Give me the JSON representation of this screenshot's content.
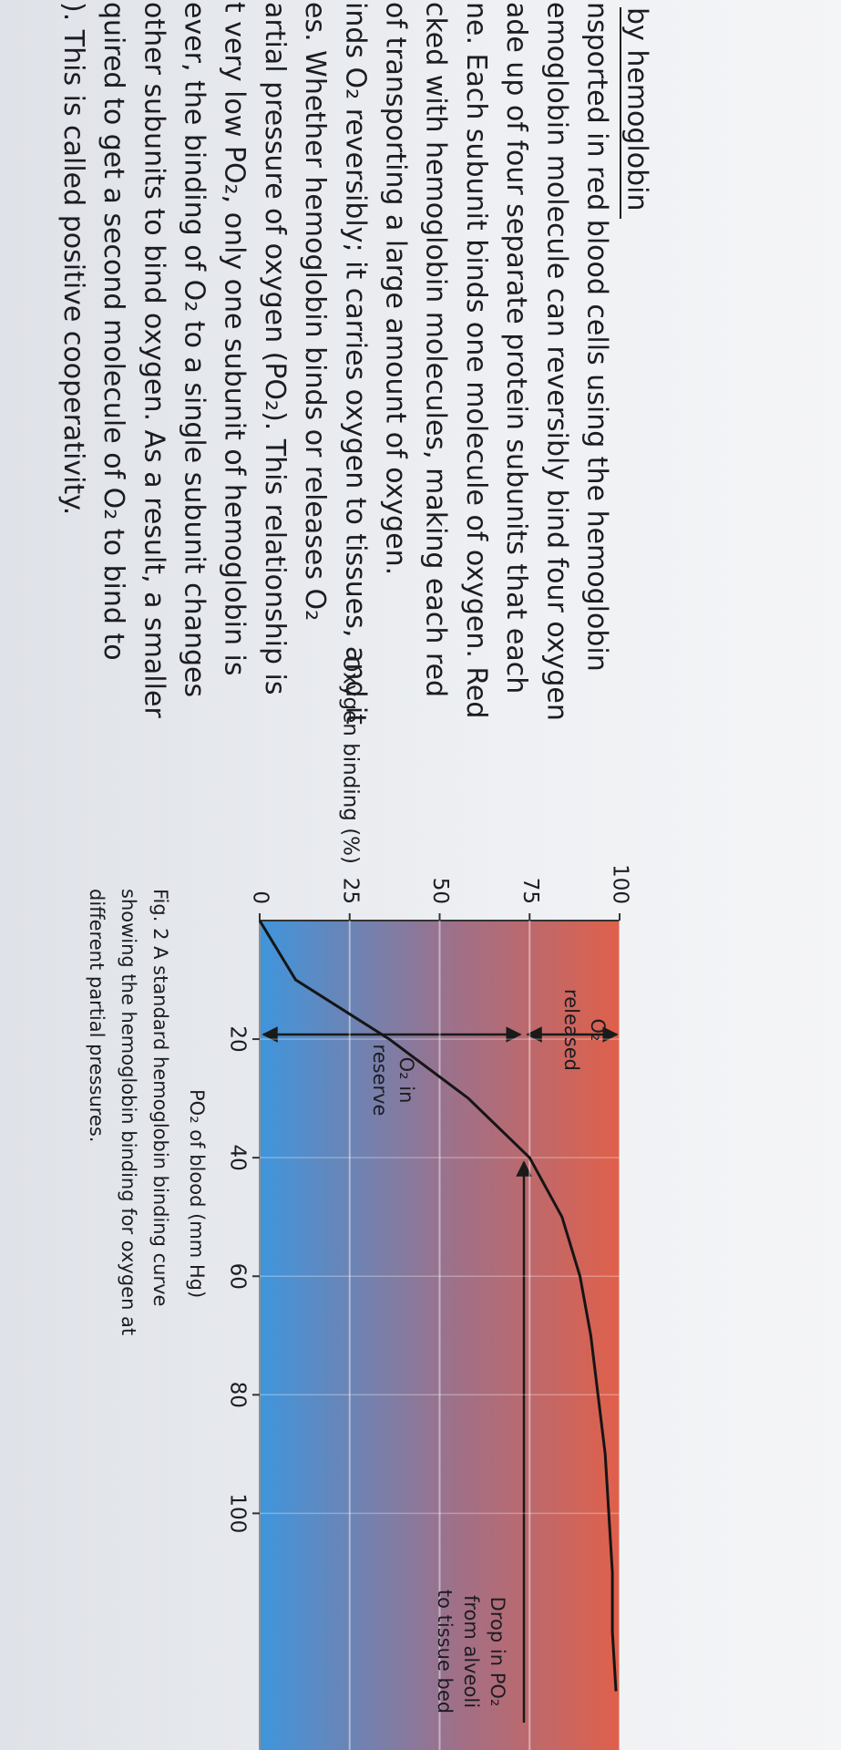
{
  "document": {
    "heading": "by hemoglobin",
    "lines": [
      "nsported in red blood cells using the hemoglobin",
      "emoglobin molecule can reversibly bind four oxygen",
      "ade up of four separate protein subunits that each",
      "ne. Each subunit binds one molecule of oxygen. Red",
      "cked with hemoglobin molecules, making each red",
      "of transporting a large amount of oxygen.",
      "inds O₂ reversibly; it carries oxygen to tissues, and it",
      "es. Whether hemoglobin binds or releases O₂",
      "artial pressure of oxygen (PO₂). This relationship is",
      "t very low PO₂, only one subunit of hemoglobin is",
      "ever, the binding of O₂ to a single subunit changes",
      "other subunits to bind oxygen. As a result, a smaller",
      "quired to get a second molecule of O₂ to bind to",
      "). This is called positive cooperativity."
    ]
  },
  "chart_data": {
    "type": "line",
    "y_label": "Oxygen binding (%)",
    "x_label": "PO₂ of blood (mm Hg)",
    "x": [
      0,
      10,
      20,
      30,
      40,
      50,
      60,
      70,
      80,
      90,
      100,
      110,
      120,
      130
    ],
    "series": [
      {
        "color": "#151515",
        "values": [
          0,
          10,
          36,
          58,
          75,
          84,
          89,
          92,
          94,
          96,
          97,
          98,
          98,
          99
        ]
      }
    ],
    "xlim": [
      0,
      135
    ],
    "ylim": [
      0,
      100
    ],
    "xticks": [
      20,
      40,
      60,
      80,
      100
    ],
    "yticks": [
      0,
      25,
      50,
      75,
      100
    ],
    "grid": true,
    "annotations": {
      "released": [
        "O₂",
        "released"
      ],
      "reserve": [
        "O₂ in",
        "reserve"
      ],
      "drop": [
        "Drop in PO₂",
        "from alveoli",
        "to tissue bed"
      ]
    }
  },
  "caption": [
    "Fig. 2 A standard hemoglobin binding curve",
    "showing the hemoglobin binding for oxygen at",
    "different partial pressures."
  ]
}
